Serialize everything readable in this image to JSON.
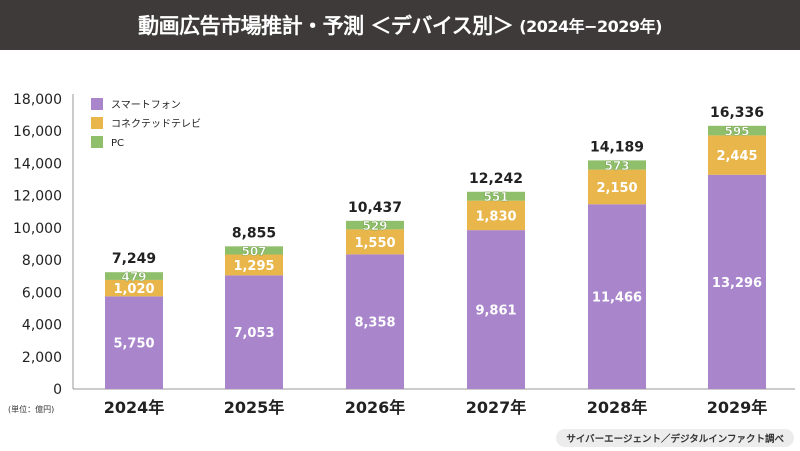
{
  "header": {
    "title": "動画広告市場推計・予測 ＜デバイス別＞",
    "period": "(2024年−2029年)"
  },
  "source": "サイバーエージェント／デジタルインファクト調べ",
  "chart_data": {
    "type": "bar",
    "stacked": true,
    "title": "動画広告市場推計・予測 ＜デバイス別＞ (2024年−2029年)",
    "ylabel": "(単位：億円)",
    "ylim": [
      0,
      18000
    ],
    "yticks": [
      0,
      2000,
      4000,
      6000,
      8000,
      10000,
      12000,
      14000,
      16000,
      18000
    ],
    "ytick_labels": [
      "0",
      "2,000",
      "4,000",
      "6,000",
      "8,000",
      "10,000",
      "12,000",
      "14,000",
      "16,000",
      "18,000"
    ],
    "categories": [
      "2024年",
      "2025年",
      "2026年",
      "2027年",
      "2028年",
      "2029年"
    ],
    "series": [
      {
        "name": "スマートフォン",
        "color": "#a985cc",
        "values": [
          5750,
          7053,
          8358,
          9861,
          11466,
          13296
        ],
        "labels": [
          "5,750",
          "7,053",
          "8,358",
          "9,861",
          "11,466",
          "13,296"
        ]
      },
      {
        "name": "コネクテッドテレビ",
        "color": "#e8b64a",
        "values": [
          1020,
          1295,
          1550,
          1830,
          2150,
          2445
        ],
        "labels": [
          "1,020",
          "1,295",
          "1,550",
          "1,830",
          "2,150",
          "2,445"
        ]
      },
      {
        "name": "PC",
        "color": "#8fbf6a",
        "values": [
          479,
          507,
          529,
          551,
          573,
          595
        ],
        "labels": [
          "479",
          "507",
          "529",
          "551",
          "573",
          "595"
        ]
      }
    ],
    "totals": [
      7249,
      8855,
      10437,
      12242,
      14189,
      16336
    ],
    "total_labels": [
      "7,249",
      "8,855",
      "10,437",
      "12,242",
      "14,189",
      "16,336"
    ],
    "legend": "top-left",
    "grid": false
  }
}
